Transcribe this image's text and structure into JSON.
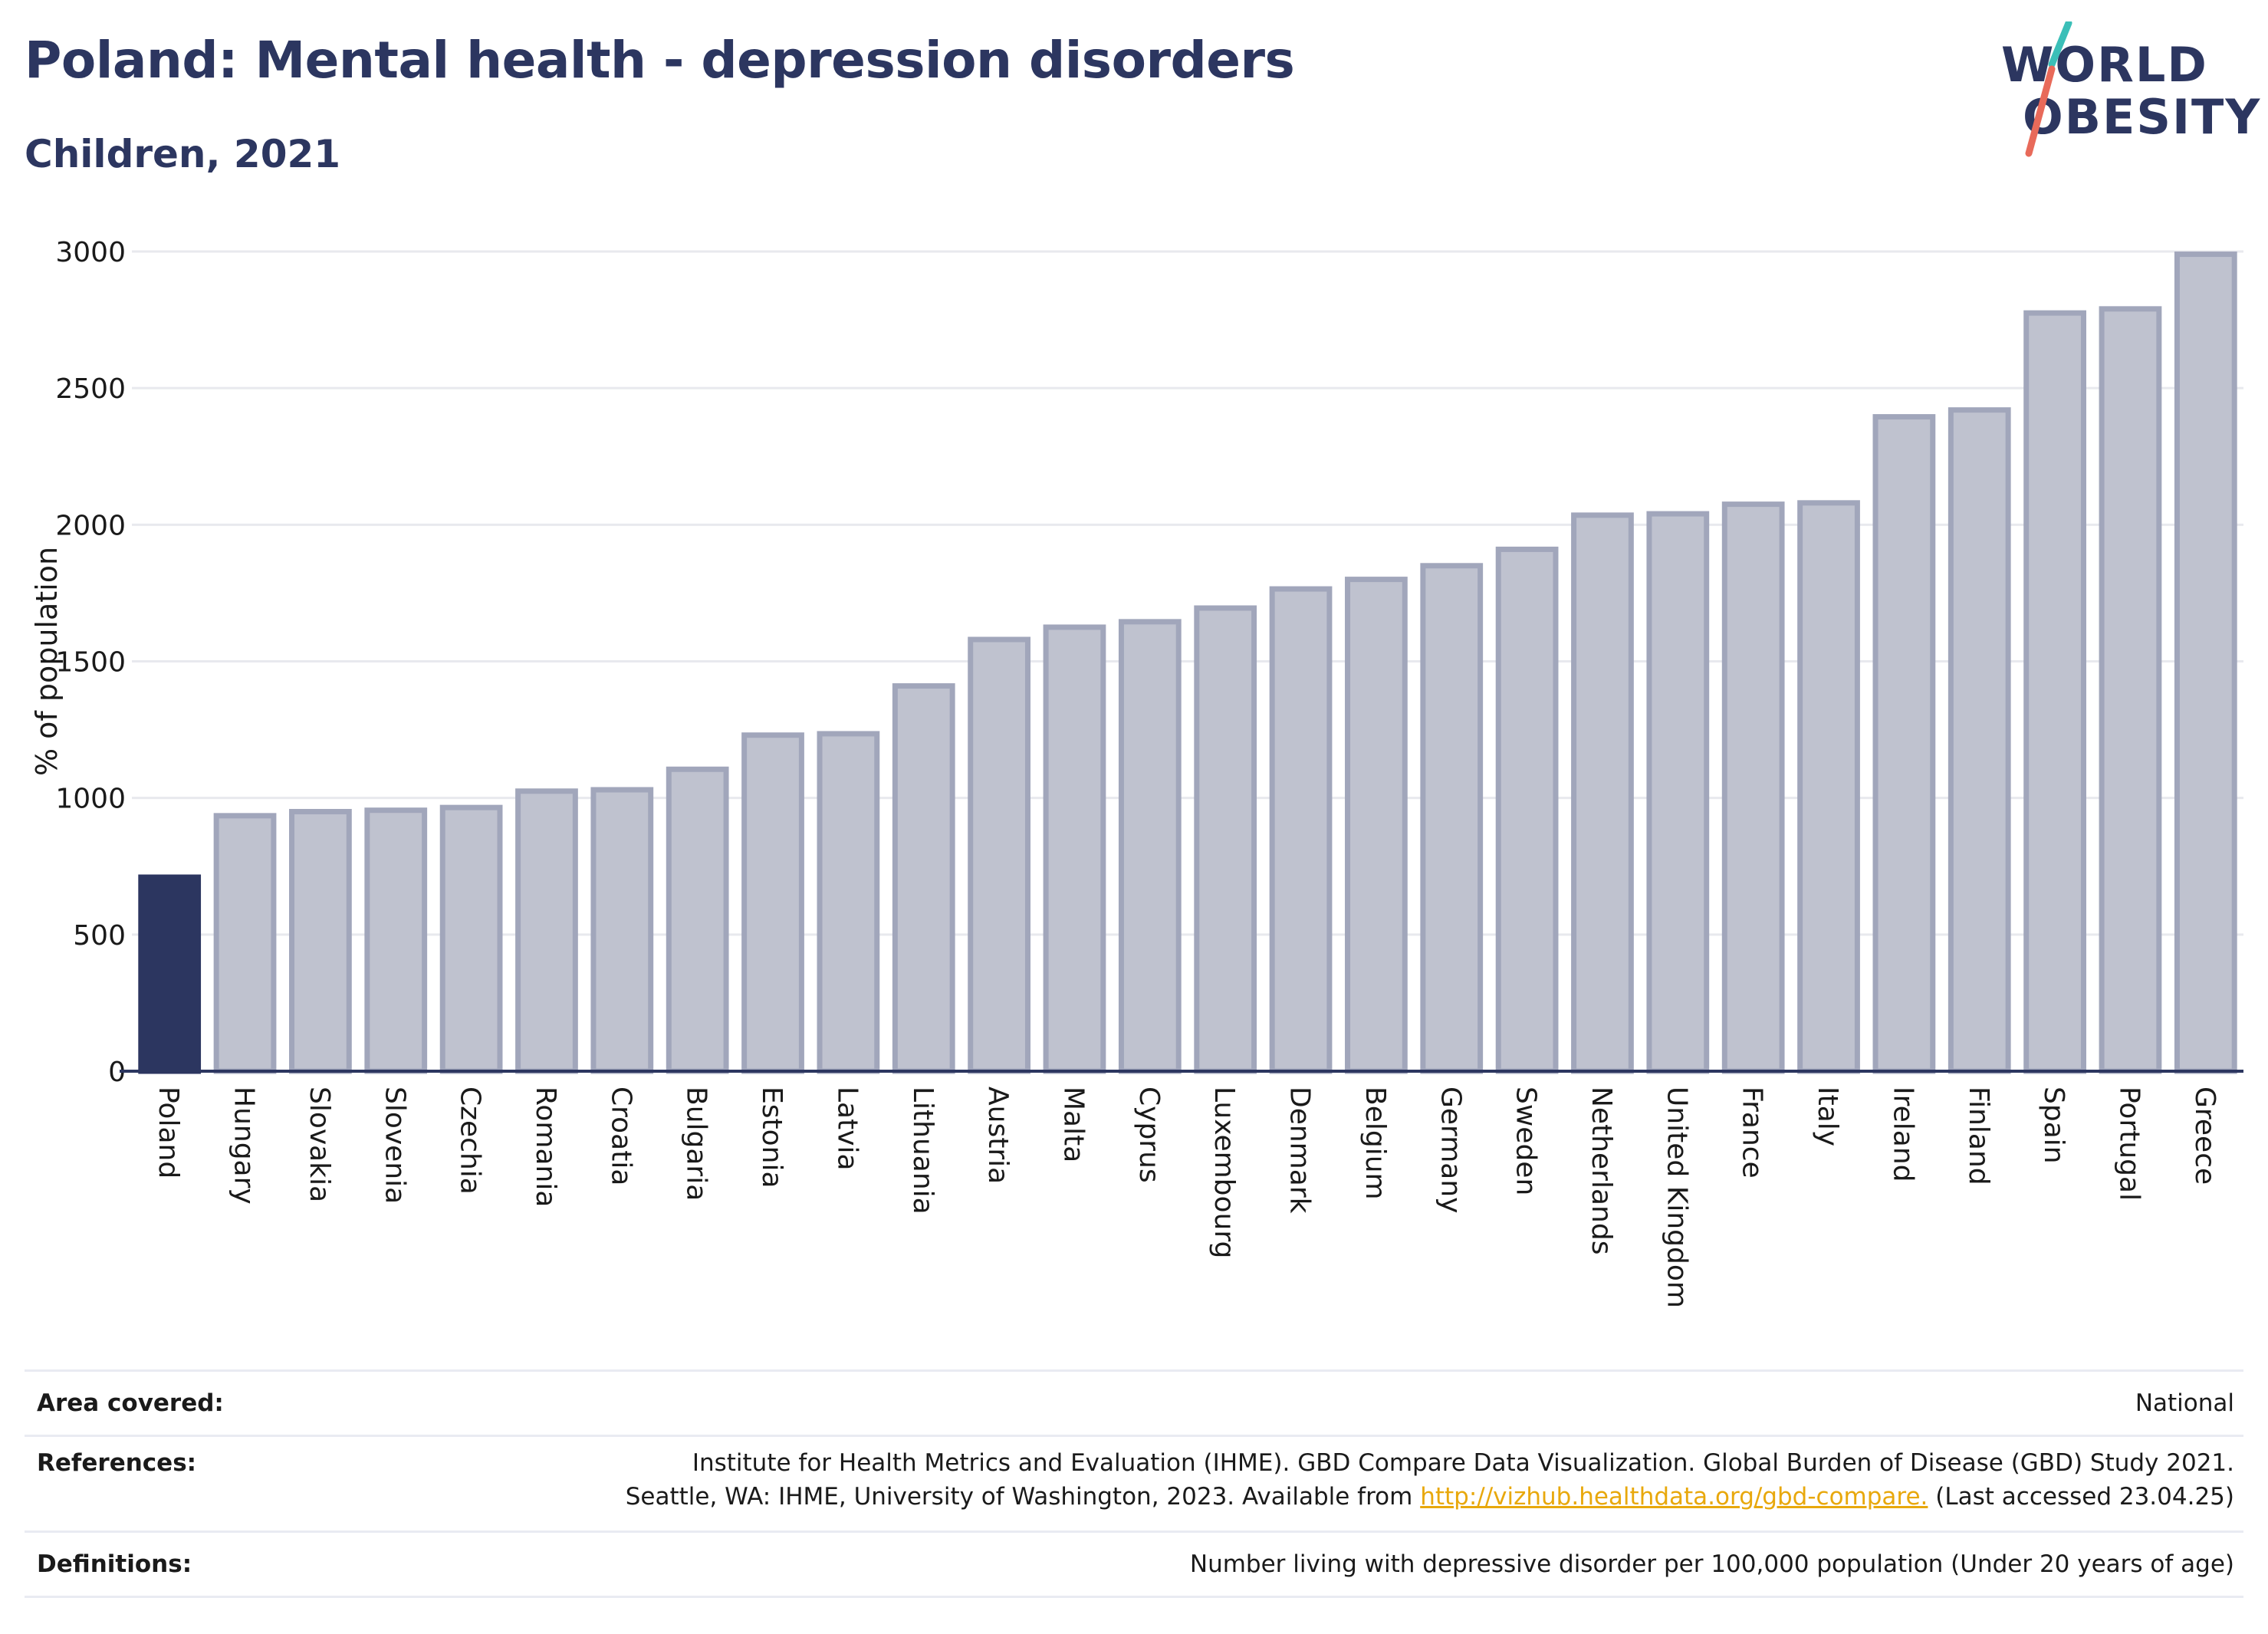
{
  "header": {
    "title": "Poland: Mental health - depression disorders",
    "subtitle": "Children, 2021"
  },
  "logo": {
    "line1": "WORLD",
    "line2": "OBESITY",
    "colors": {
      "text": "#2c3660",
      "slash_top": "#3bbfb8",
      "slash_bottom": "#e86a5a"
    }
  },
  "chart_data": {
    "type": "bar",
    "ylabel": "% of population",
    "ylim": [
      0,
      3000
    ],
    "yticks": [
      0,
      500,
      1000,
      1500,
      2000,
      2500,
      3000
    ],
    "grid": true,
    "categories": [
      "Poland",
      "Hungary",
      "Slovakia",
      "Slovenia",
      "Czechia",
      "Romania",
      "Croatia",
      "Bulgaria",
      "Estonia",
      "Latvia",
      "Lithuania",
      "Austria",
      "Malta",
      "Cyprus",
      "Luxembourg",
      "Denmark",
      "Belgium",
      "Germany",
      "Sweden",
      "Netherlands",
      "United Kingdom",
      "France",
      "Italy",
      "Ireland",
      "Finland",
      "Spain",
      "Portugal",
      "Greece"
    ],
    "values": [
      710,
      935,
      950,
      955,
      965,
      1025,
      1030,
      1105,
      1230,
      1235,
      1410,
      1580,
      1625,
      1645,
      1695,
      1765,
      1800,
      1850,
      1910,
      2035,
      2040,
      2075,
      2080,
      2395,
      2420,
      2775,
      2790,
      2990
    ],
    "highlight": "Poland",
    "colors": {
      "highlight": "#2c3660",
      "other_fill": "#bfc2cf",
      "other_stroke": "#a1a6bb",
      "grid": "#e8e9ee",
      "axis": "#2c3660"
    }
  },
  "footer": {
    "area_label": "Area covered:",
    "area_value": "National",
    "references_label": "References:",
    "references_line1": "Institute for Health Metrics and Evaluation (IHME). GBD Compare Data Visualization. Global Burden of Disease (GBD) Study 2021.",
    "references_line2_pre": "Seattle, WA: IHME, University of Washington, 2023. Available from ",
    "references_link": "http://vizhub.healthdata.org/gbd-compare.",
    "references_line2_post": " (Last accessed 23.04.25)",
    "definitions_label": "Definitions:",
    "definitions_value": "Number living with depressive disorder per 100,000 population (Under 20 years of age)"
  }
}
